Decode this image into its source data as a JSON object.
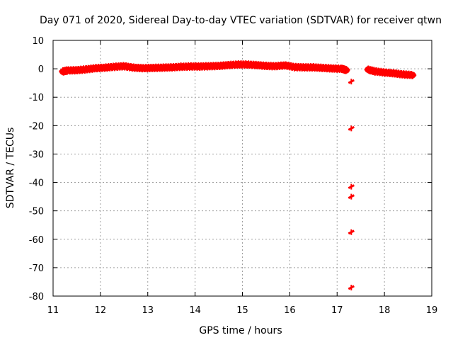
{
  "chart_data": {
    "type": "scatter",
    "title": "Day 071 of 2020, Sidereal Day-to-day VTEC variation (SDTVAR) for receiver qtwn",
    "xlabel": "GPS time / hours",
    "ylabel": "SDTVAR / TECUs",
    "xlim": [
      11,
      19
    ],
    "ylim": [
      -80,
      10
    ],
    "x_ticks": [
      11,
      12,
      13,
      14,
      15,
      16,
      17,
      18,
      19
    ],
    "y_ticks": [
      10,
      0,
      -10,
      -20,
      -30,
      -40,
      -50,
      -60,
      -70,
      -80
    ],
    "grid": true,
    "series": [
      {
        "name": "SDTVAR",
        "color": "#ff0000",
        "marker": "plus",
        "band": [
          [
            11.2,
            -1.0
          ],
          [
            11.3,
            -0.6
          ],
          [
            11.5,
            -0.5
          ],
          [
            11.7,
            -0.2
          ],
          [
            11.9,
            0.2
          ],
          [
            12.1,
            0.4
          ],
          [
            12.3,
            0.7
          ],
          [
            12.5,
            0.9
          ],
          [
            12.7,
            0.4
          ],
          [
            12.9,
            0.2
          ],
          [
            13.1,
            0.3
          ],
          [
            13.3,
            0.4
          ],
          [
            13.5,
            0.5
          ],
          [
            13.7,
            0.7
          ],
          [
            13.9,
            0.8
          ],
          [
            14.1,
            0.8
          ],
          [
            14.3,
            0.9
          ],
          [
            14.5,
            1.0
          ],
          [
            14.7,
            1.3
          ],
          [
            14.9,
            1.5
          ],
          [
            15.1,
            1.5
          ],
          [
            15.3,
            1.3
          ],
          [
            15.5,
            1.0
          ],
          [
            15.7,
            0.9
          ],
          [
            15.9,
            1.2
          ],
          [
            16.1,
            0.6
          ],
          [
            16.3,
            0.5
          ],
          [
            16.5,
            0.5
          ],
          [
            16.7,
            0.3
          ],
          [
            16.9,
            0.1
          ],
          [
            17.1,
            0.0
          ],
          [
            17.2,
            -0.5
          ]
        ],
        "band2": [
          [
            17.65,
            -0.3
          ],
          [
            17.8,
            -0.9
          ],
          [
            18.0,
            -1.3
          ],
          [
            18.2,
            -1.6
          ],
          [
            18.4,
            -2.0
          ],
          [
            18.6,
            -2.2
          ]
        ],
        "outliers": [
          [
            17.3,
            -4.5
          ],
          [
            17.3,
            -21.0
          ],
          [
            17.3,
            -41.5
          ],
          [
            17.3,
            -45.0
          ],
          [
            17.3,
            -57.5
          ],
          [
            17.3,
            -77.0
          ]
        ]
      }
    ]
  }
}
